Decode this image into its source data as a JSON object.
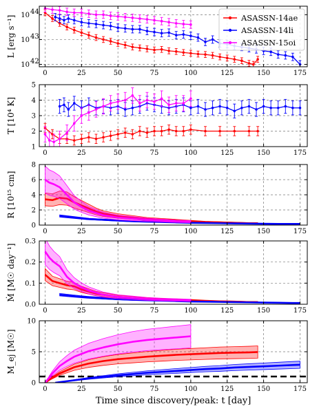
{
  "chart_data": [
    {
      "type": "line",
      "ylabel": "L [erg s⁻¹]",
      "yscale": "log",
      "ylim": [
        8e+41,
        2.2e+44
      ],
      "xlim": [
        -4,
        180
      ],
      "yticks": [
        1e+42,
        1e+43,
        1e+44
      ],
      "ytick_labels": [
        "10",
        "10",
        "10"
      ],
      "ytick_exponents": [
        "42",
        "43",
        "44"
      ],
      "grid": true,
      "legend": "top-right",
      "series": [
        {
          "name": "ASASSN-14ae",
          "color": "#ff0000",
          "x": [
            0,
            5,
            10,
            15,
            20,
            25,
            30,
            35,
            40,
            45,
            50,
            55,
            60,
            65,
            70,
            75,
            80,
            85,
            90,
            95,
            100,
            105,
            110,
            115,
            120,
            125,
            130,
            135,
            140,
            143,
            146
          ],
          "y": [
            1.2e+44,
            7e+43,
            4.5e+43,
            3.2e+43,
            2.4e+43,
            1.9e+43,
            1.5e+43,
            1.2e+43,
            1e+43,
            8.5e+42,
            7e+42,
            6e+42,
            5e+42,
            4.6e+42,
            4.2e+42,
            3.8e+42,
            4e+42,
            3.5e+42,
            3.3e+42,
            3e+42,
            2.8e+42,
            2.6e+42,
            2.5e+42,
            2.3e+42,
            2e+42,
            1.8e+42,
            1.6e+42,
            1.4e+42,
            1.1e+42,
            1e+42,
            1.6e+42
          ],
          "err": 0.12
        },
        {
          "name": "ASASSN-14li",
          "color": "#0000ff",
          "x": [
            7,
            10,
            13,
            16,
            20,
            25,
            30,
            35,
            40,
            45,
            50,
            55,
            60,
            65,
            70,
            75,
            80,
            85,
            90,
            95,
            100,
            105,
            110,
            115,
            120,
            125,
            130,
            135,
            140,
            145,
            150,
            155,
            160,
            165,
            170,
            175
          ],
          "y": [
            8e+43,
            7e+43,
            6e+43,
            7e+43,
            6e+43,
            5e+43,
            4.5e+43,
            4.2e+43,
            3.8e+43,
            3.5e+43,
            3e+43,
            2.8e+43,
            2.6e+43,
            2.6e+43,
            2.2e+43,
            2e+43,
            1.8e+43,
            1.9e+43,
            1.5e+43,
            1.6e+43,
            1.4e+43,
            1.2e+43,
            8e+42,
            1e+43,
            7e+42,
            6.5e+42,
            5.5e+42,
            5e+42,
            4.5e+42,
            4e+42,
            3.5e+42,
            3.2e+42,
            2.5e+42,
            2.3e+42,
            2e+42,
            1e+42
          ],
          "err": 0.15
        },
        {
          "name": "ASASSN-15oi",
          "color": "#ff00ff",
          "x": [
            0,
            5,
            10,
            15,
            20,
            25,
            30,
            35,
            40,
            45,
            50,
            55,
            60,
            65,
            70,
            75,
            80,
            85,
            90,
            95,
            100
          ],
          "y": [
            1.8e+44,
            1.6e+44,
            1.5e+44,
            1.3e+44,
            1.2e+44,
            1.2e+44,
            1.1e+44,
            1e+44,
            1e+44,
            9e+43,
            8.5e+43,
            8e+43,
            7.5e+43,
            7e+43,
            6.5e+43,
            6e+43,
            5.5e+43,
            5e+43,
            4.5e+43,
            4.2e+43,
            4e+43
          ],
          "err": 0.15
        }
      ]
    },
    {
      "type": "line",
      "ylabel": "T [10⁴ K]",
      "ylim": [
        1,
        5
      ],
      "xlim": [
        -4,
        180
      ],
      "yticks": [
        1,
        2,
        3,
        4,
        5
      ],
      "grid": true,
      "series": [
        {
          "name": "ASASSN-14ae",
          "color": "#ff0000",
          "x": [
            0,
            5,
            10,
            15,
            20,
            25,
            30,
            35,
            40,
            45,
            50,
            55,
            60,
            65,
            70,
            75,
            80,
            85,
            90,
            95,
            100,
            110,
            120,
            130,
            140,
            146
          ],
          "y": [
            2.2,
            1.8,
            1.5,
            1.5,
            1.4,
            1.5,
            1.6,
            1.5,
            1.6,
            1.7,
            1.8,
            1.9,
            1.8,
            2.0,
            1.9,
            2.0,
            2.0,
            2.1,
            2.0,
            2.0,
            2.1,
            2.0,
            2.0,
            2.0,
            2.0,
            2.0
          ],
          "err": 0.3
        },
        {
          "name": "ASASSN-14li",
          "color": "#0000ff",
          "x": [
            10,
            13,
            16,
            20,
            25,
            30,
            35,
            40,
            45,
            50,
            55,
            60,
            65,
            70,
            75,
            80,
            85,
            90,
            95,
            100,
            105,
            110,
            115,
            120,
            125,
            130,
            135,
            140,
            145,
            150,
            155,
            160,
            165,
            170,
            175
          ],
          "y": [
            3.6,
            3.7,
            3.4,
            3.8,
            3.5,
            3.7,
            3.5,
            3.6,
            3.5,
            3.6,
            3.4,
            3.5,
            3.6,
            3.8,
            3.7,
            3.6,
            3.5,
            3.6,
            3.7,
            3.5,
            3.6,
            3.4,
            3.5,
            3.6,
            3.5,
            3.3,
            3.5,
            3.6,
            3.4,
            3.6,
            3.5,
            3.5,
            3.6,
            3.5,
            3.5
          ],
          "err": 0.45
        },
        {
          "name": "ASASSN-15oi",
          "color": "#ff00ff",
          "x": [
            0,
            3,
            6,
            10,
            15,
            20,
            25,
            30,
            35,
            40,
            45,
            50,
            55,
            60,
            65,
            70,
            75,
            80,
            85,
            90,
            95,
            100
          ],
          "y": [
            1.8,
            1.4,
            1.3,
            1.5,
            1.9,
            2.5,
            3.0,
            3.2,
            3.4,
            3.6,
            3.8,
            3.9,
            4.0,
            4.3,
            3.8,
            4.0,
            3.9,
            4.1,
            3.7,
            3.8,
            3.8,
            4.1
          ],
          "err": 0.5
        }
      ]
    },
    {
      "type": "area",
      "ylabel": "R [10¹⁵ cm]",
      "ylim": [
        0,
        8
      ],
      "xlim": [
        -4,
        180
      ],
      "yticks": [
        0,
        2,
        4,
        6,
        8
      ],
      "grid": true,
      "series": [
        {
          "name": "ASASSN-14ae",
          "color": "#ff0000",
          "x": [
            0,
            5,
            10,
            15,
            20,
            25,
            30,
            35,
            40,
            50,
            60,
            70,
            80,
            90,
            100,
            110,
            120,
            130,
            140,
            146
          ],
          "y": [
            3.4,
            3.3,
            3.6,
            3.5,
            3.0,
            2.6,
            2.2,
            1.8,
            1.5,
            1.2,
            1.0,
            0.8,
            0.7,
            0.6,
            0.5,
            0.4,
            0.35,
            0.3,
            0.25,
            0.25
          ],
          "band": 0.25
        },
        {
          "name": "ASASSN-14li",
          "color": "#0000ff",
          "x": [
            10,
            20,
            30,
            40,
            50,
            60,
            70,
            80,
            90,
            100,
            110,
            120,
            130,
            140,
            150,
            160,
            170,
            175
          ],
          "y": [
            1.2,
            1.0,
            0.8,
            0.7,
            0.6,
            0.5,
            0.45,
            0.4,
            0.35,
            0.3,
            0.28,
            0.25,
            0.22,
            0.2,
            0.18,
            0.16,
            0.15,
            0.15
          ],
          "band": 0.12
        },
        {
          "name": "ASASSN-15oi",
          "color": "#ff00ff",
          "x": [
            0,
            3,
            6,
            10,
            15,
            20,
            25,
            30,
            35,
            40,
            50,
            60,
            70,
            80,
            90,
            100
          ],
          "y": [
            6.0,
            5.6,
            5.4,
            5.0,
            4.0,
            3.0,
            2.4,
            1.9,
            1.6,
            1.3,
            1.0,
            0.85,
            0.7,
            0.6,
            0.5,
            0.45
          ],
          "band": 0.3
        }
      ]
    },
    {
      "type": "area",
      "ylabel": "Ṁ [M☉ day⁻¹]",
      "ylim": [
        0,
        0.3
      ],
      "xlim": [
        -4,
        180
      ],
      "yticks": [
        0.0,
        0.1,
        0.2,
        0.3
      ],
      "grid": true,
      "series": [
        {
          "name": "ASASSN-14ae",
          "color": "#ff0000",
          "x": [
            0,
            5,
            10,
            15,
            20,
            25,
            30,
            35,
            40,
            50,
            60,
            70,
            80,
            90,
            100,
            110,
            120,
            130,
            140,
            146
          ],
          "y": [
            0.14,
            0.11,
            0.1,
            0.09,
            0.085,
            0.07,
            0.06,
            0.05,
            0.045,
            0.035,
            0.03,
            0.025,
            0.022,
            0.02,
            0.018,
            0.015,
            0.013,
            0.012,
            0.01,
            0.01
          ],
          "band": 0.2
        },
        {
          "name": "ASASSN-14li",
          "color": "#0000ff",
          "x": [
            10,
            20,
            30,
            40,
            50,
            60,
            70,
            80,
            90,
            100,
            110,
            120,
            130,
            140,
            150,
            160,
            170,
            175
          ],
          "y": [
            0.045,
            0.038,
            0.032,
            0.028,
            0.024,
            0.021,
            0.019,
            0.017,
            0.015,
            0.013,
            0.012,
            0.011,
            0.01,
            0.009,
            0.008,
            0.007,
            0.006,
            0.006
          ],
          "band": 0.12
        },
        {
          "name": "ASASSN-15oi",
          "color": "#ff00ff",
          "x": [
            0,
            3,
            6,
            10,
            15,
            20,
            25,
            30,
            35,
            40,
            50,
            60,
            70,
            80,
            90,
            100
          ],
          "y": [
            0.25,
            0.22,
            0.2,
            0.18,
            0.13,
            0.1,
            0.08,
            0.065,
            0.055,
            0.045,
            0.035,
            0.03,
            0.025,
            0.022,
            0.02,
            0.018
          ],
          "band": 0.25
        }
      ]
    },
    {
      "type": "area",
      "ylabel": "M_ej [M☉]",
      "ylim": [
        0,
        10
      ],
      "xlim": [
        -4,
        180
      ],
      "yticks": [
        0,
        5,
        10
      ],
      "xticks": [
        0,
        25,
        50,
        75,
        100,
        125,
        150,
        175
      ],
      "xlabel": "Time since discovery/peak: t [day]",
      "grid": true,
      "hline": {
        "y": 1.0,
        "color": "#000000"
      },
      "series": [
        {
          "name": "ASASSN-14ae",
          "color": "#ff0000",
          "x": [
            0,
            5,
            10,
            15,
            20,
            30,
            40,
            50,
            60,
            70,
            80,
            90,
            100,
            110,
            120,
            130,
            140,
            146
          ],
          "y": [
            0,
            0.8,
            1.5,
            2.0,
            2.5,
            3.1,
            3.5,
            3.8,
            4.0,
            4.2,
            4.35,
            4.5,
            4.6,
            4.7,
            4.8,
            4.85,
            4.9,
            4.95
          ],
          "band": 0.2
        },
        {
          "name": "ASASSN-14li",
          "color": "#0000ff",
          "x": [
            7,
            10,
            20,
            30,
            40,
            50,
            60,
            70,
            80,
            90,
            100,
            110,
            120,
            130,
            140,
            150,
            160,
            170,
            175
          ],
          "y": [
            0,
            0.1,
            0.4,
            0.7,
            0.95,
            1.2,
            1.4,
            1.6,
            1.75,
            1.9,
            2.05,
            2.2,
            2.3,
            2.45,
            2.55,
            2.65,
            2.75,
            2.85,
            2.9
          ],
          "band": 0.2
        },
        {
          "name": "ASASSN-15oi",
          "color": "#ff00ff",
          "x": [
            0,
            5,
            10,
            15,
            20,
            30,
            40,
            50,
            60,
            70,
            80,
            90,
            100
          ],
          "y": [
            0,
            1.5,
            2.7,
            3.5,
            4.2,
            5.1,
            5.7,
            6.2,
            6.6,
            6.9,
            7.1,
            7.3,
            7.5
          ],
          "band": 0.25
        }
      ]
    }
  ]
}
